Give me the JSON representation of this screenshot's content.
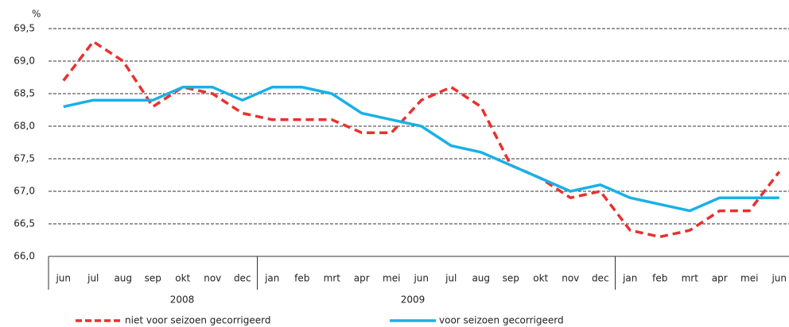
{
  "chart_data": {
    "type": "line",
    "y_unit": "%",
    "categories": [
      "jun",
      "jul",
      "aug",
      "sep",
      "okt",
      "nov",
      "dec",
      "jan",
      "feb",
      "mrt",
      "apr",
      "mei",
      "jun",
      "jul",
      "aug",
      "sep",
      "okt",
      "nov",
      "dec",
      "jan",
      "feb",
      "mrt",
      "apr",
      "mei",
      "jun"
    ],
    "year_labels": [
      "2008",
      "2009"
    ],
    "series": [
      {
        "name": "niet voor seizoen gecorrigeerd",
        "color": "#e8312f",
        "dashed": true,
        "values": [
          68.7,
          69.3,
          69.0,
          68.3,
          68.6,
          68.5,
          68.2,
          68.1,
          68.1,
          68.1,
          67.9,
          67.9,
          68.4,
          68.6,
          68.3,
          67.4,
          67.2,
          66.9,
          67.0,
          66.4,
          66.3,
          66.4,
          66.7,
          66.7,
          67.3
        ]
      },
      {
        "name": "voor seizoen gecorrigeerd",
        "color": "#1ab0e8",
        "dashed": false,
        "values": [
          68.3,
          68.4,
          68.4,
          68.4,
          68.6,
          68.6,
          68.4,
          68.6,
          68.6,
          68.5,
          68.2,
          68.1,
          68.0,
          67.7,
          67.6,
          67.4,
          67.2,
          67.0,
          67.1,
          66.9,
          66.8,
          66.7,
          66.9,
          66.9,
          66.9
        ]
      }
    ],
    "ylim": [
      66.0,
      69.5
    ],
    "yticks": [
      {
        "value": 66.0,
        "label": "66,0"
      },
      {
        "value": 66.5,
        "label": "66,5"
      },
      {
        "value": 67.0,
        "label": "67,0"
      },
      {
        "value": 67.5,
        "label": "67,5"
      },
      {
        "value": 68.0,
        "label": "68,0"
      },
      {
        "value": 68.5,
        "label": "68,5"
      },
      {
        "value": 69.0,
        "label": "69,0"
      },
      {
        "value": 69.5,
        "label": "69,5"
      }
    ],
    "grid": true,
    "legend": "bottom"
  }
}
